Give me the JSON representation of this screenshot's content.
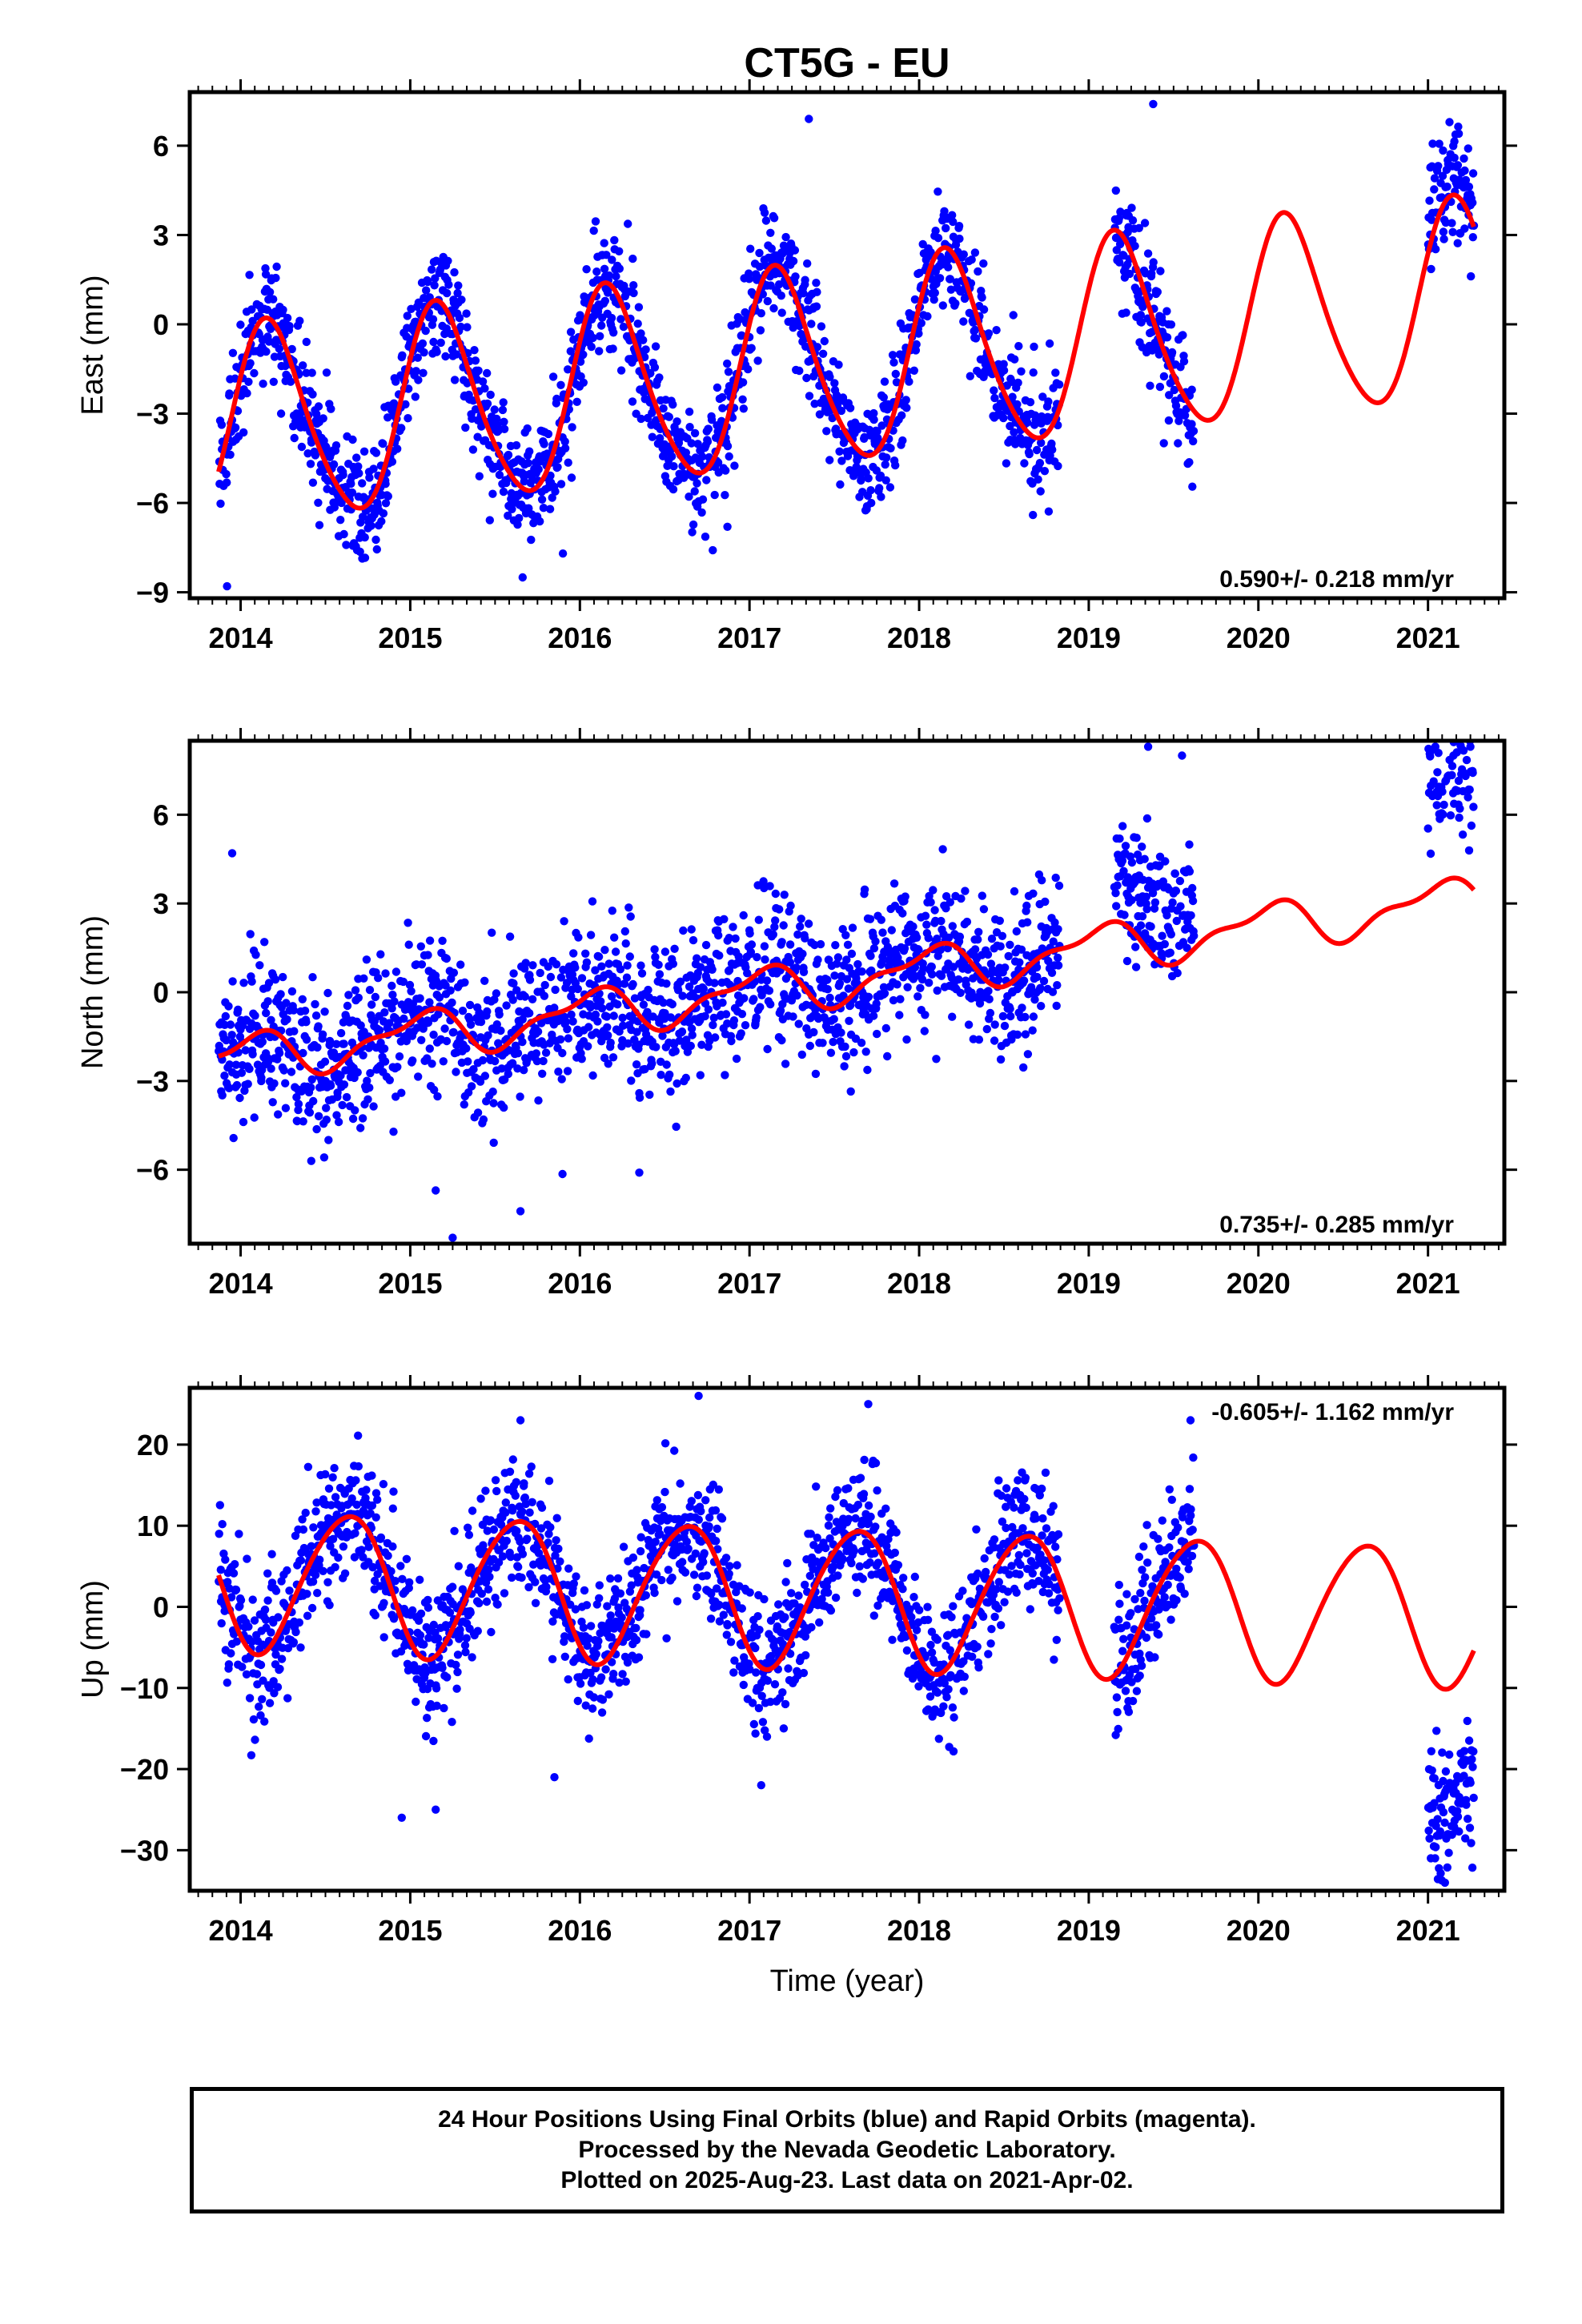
{
  "title": "CT5G - EU",
  "colors": {
    "data": "#0000ff",
    "model": "#ff0000",
    "frame": "#000000"
  },
  "chart_data": [
    {
      "type": "scatter",
      "name": "east",
      "ylabel": "East (mm)",
      "xlabel": "",
      "xlim": [
        2013.7,
        2021.45
      ],
      "ylim": [
        -9.2,
        7.8
      ],
      "xticks": [
        2014,
        2015,
        2016,
        2017,
        2018,
        2019,
        2020,
        2021
      ],
      "yticks": [
        -9,
        -6,
        -3,
        0,
        3,
        6
      ],
      "rate_label": "0.590+/- 0.218 mm/yr",
      "model": {
        "name": "fit",
        "offset": -1.7,
        "rate": 0.59,
        "amp_annual": 3.3,
        "phase_annual": 0.17,
        "amp_semi": 0.4,
        "phase_semi": 0.1,
        "t0": 2017.0
      },
      "data_segments": [
        [
          2013.87,
          2018.83
        ],
        [
          2019.15,
          2019.62
        ],
        [
          2021.0,
          2021.27
        ]
      ],
      "noise_sd": 1.0,
      "offsets": [
        [
          2021.0,
          0.6
        ]
      ],
      "outliers": [
        [
          2013.92,
          -8.8
        ],
        [
          2015.9,
          -7.7
        ],
        [
          2016.87,
          -6.8
        ],
        [
          2017.35,
          6.9
        ],
        [
          2019.38,
          7.4
        ]
      ]
    },
    {
      "type": "scatter",
      "name": "north",
      "ylabel": "North (mm)",
      "xlabel": "",
      "xlim": [
        2013.7,
        2021.45
      ],
      "ylim": [
        -8.5,
        8.5
      ],
      "xticks": [
        2014,
        2015,
        2016,
        2017,
        2018,
        2019,
        2020,
        2021
      ],
      "yticks": [
        -6,
        -3,
        0,
        3,
        6
      ],
      "rate_label": "0.735+/- 0.285 mm/yr",
      "model": {
        "name": "fit",
        "offset": 0.0,
        "rate": 0.735,
        "amp_annual": 0.7,
        "phase_annual": 0.05,
        "amp_semi": 0.3,
        "phase_semi": 0.2,
        "t0": 2017.0
      },
      "data_segments": [
        [
          2013.87,
          2018.83
        ],
        [
          2019.15,
          2019.62
        ],
        [
          2021.0,
          2021.27
        ]
      ],
      "noise_sd": 1.25,
      "offsets": [
        [
          2019.15,
          1.6
        ],
        [
          2021.0,
          2.3
        ]
      ],
      "outliers": [
        [
          2015.25,
          -8.3
        ],
        [
          2015.15,
          -6.7
        ],
        [
          2015.65,
          -7.4
        ],
        [
          2016.35,
          -6.1
        ],
        [
          2013.95,
          4.7
        ],
        [
          2019.35,
          8.3
        ],
        [
          2019.55,
          8.0
        ],
        [
          2021.25,
          8.3
        ],
        [
          2021.15,
          8.0
        ]
      ]
    },
    {
      "type": "scatter",
      "name": "up",
      "ylabel": "Up (mm)",
      "xlabel": "Time (year)",
      "xlim": [
        2013.7,
        2021.45
      ],
      "ylim": [
        -35,
        27
      ],
      "xticks": [
        2014,
        2015,
        2016,
        2017,
        2018,
        2019,
        2020,
        2021
      ],
      "yticks": [
        -30,
        -20,
        -10,
        0,
        10,
        20
      ],
      "rate_label": "-0.605+/- 1.162 mm/yr",
      "model": {
        "name": "fit",
        "offset": 1.5,
        "rate": -0.605,
        "amp_annual": 8.6,
        "phase_annual": 0.62,
        "amp_semi": 0.8,
        "phase_semi": 0.3,
        "t0": 2017.0
      },
      "data_segments": [
        [
          2013.87,
          2018.83
        ],
        [
          2019.15,
          2019.62
        ],
        [
          2021.0,
          2021.27
        ]
      ],
      "noise_sd": 4.2,
      "offsets": [
        [
          2021.0,
          -16.0
        ]
      ],
      "outliers": [
        [
          2016.7,
          26.0
        ],
        [
          2017.7,
          25.0
        ],
        [
          2019.6,
          23.0
        ],
        [
          2015.65,
          23.0
        ],
        [
          2014.95,
          -26.0
        ],
        [
          2015.15,
          -25.0
        ],
        [
          2015.85,
          -21.0
        ],
        [
          2021.1,
          -34.0
        ]
      ]
    }
  ],
  "footer": {
    "line1": "24 Hour Positions Using Final Orbits (blue) and Rapid Orbits (magenta).",
    "line2": "Processed by the Nevada Geodetic Laboratory.",
    "line3": "Plotted on 2025-Aug-23. Last data on 2021-Apr-02."
  }
}
